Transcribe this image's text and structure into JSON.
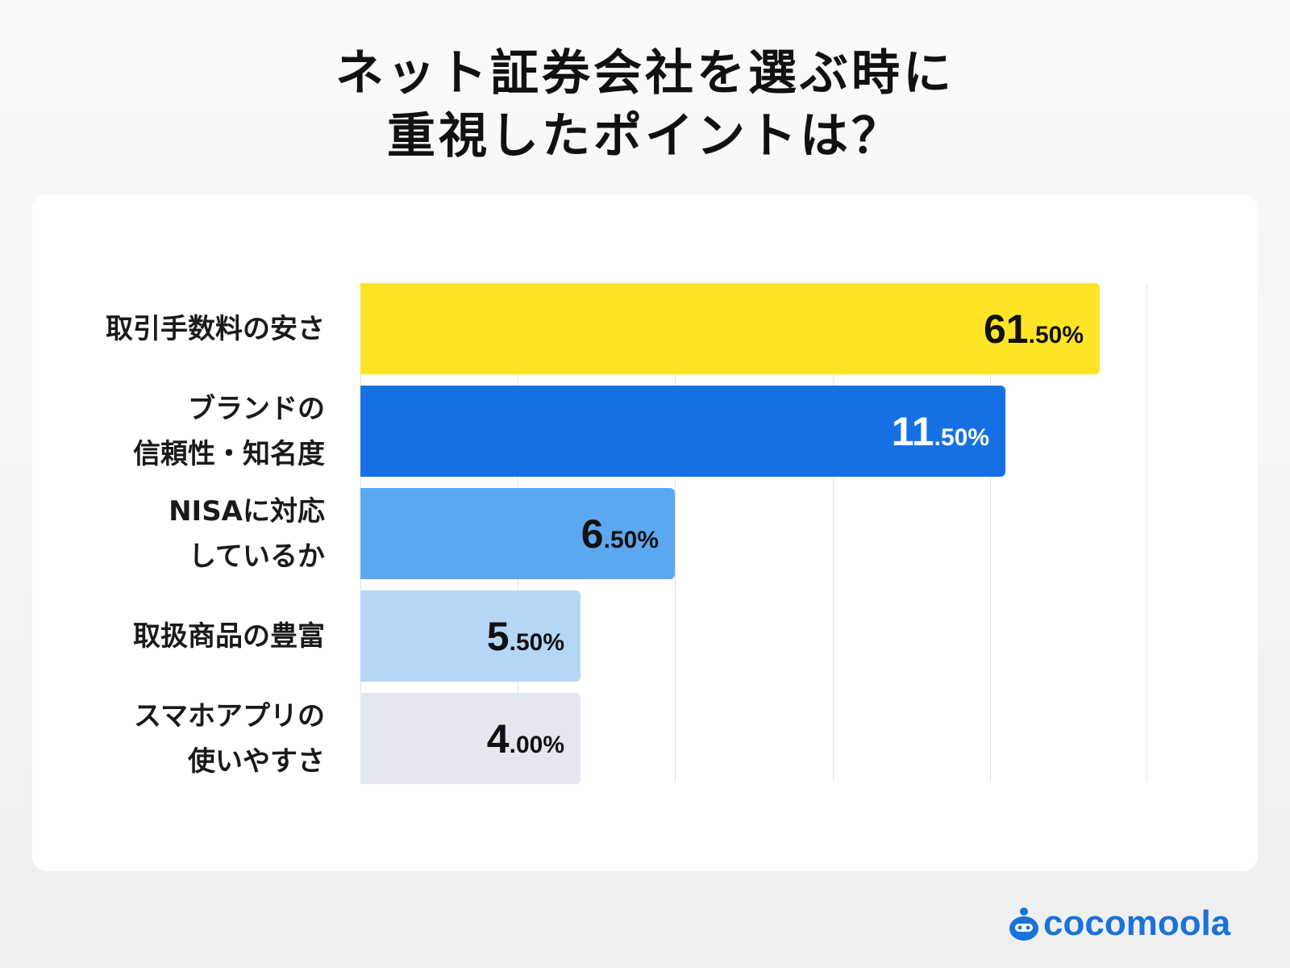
{
  "chart_data": {
    "type": "bar",
    "orientation": "horizontal",
    "title": [
      "ネット証券会社を選ぶ時に",
      "重視したポイントは？"
    ],
    "categories": [
      [
        "取引手数料の安さ"
      ],
      [
        "ブランドの",
        "信頼性・知名度"
      ],
      [
        "NISAに対応",
        "しているか"
      ],
      [
        "取扱商品の豊富"
      ],
      [
        "スマホアプリの",
        "使いやすさ"
      ]
    ],
    "values": [
      61.5,
      11.5,
      6.5,
      5.5,
      4.0
    ],
    "value_labels": [
      [
        "61",
        ".50%"
      ],
      [
        "11",
        ".50%"
      ],
      [
        "6",
        ".50%"
      ],
      [
        "5",
        ".50%"
      ],
      [
        "4",
        ".00%"
      ]
    ],
    "colors": [
      "#FDE426",
      "#1571E3",
      "#5CA8F0",
      "#B5D6F7",
      "#E3E8EF"
    ],
    "grid": true,
    "legend": "none"
  },
  "brand": {
    "name": "cocomoola",
    "color": "#1A73D9"
  }
}
